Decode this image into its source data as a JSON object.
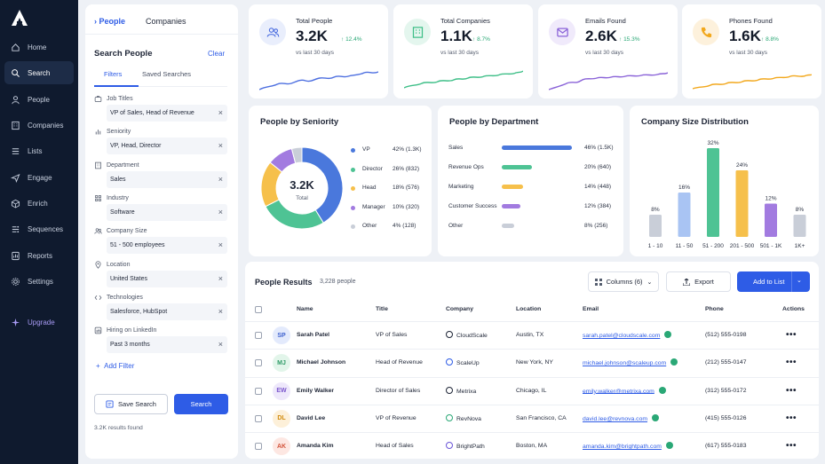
{
  "sidebar": {
    "items": [
      {
        "label": "Home",
        "icon": "home-icon"
      },
      {
        "label": "Search",
        "icon": "search-icon",
        "active": true
      },
      {
        "label": "People",
        "icon": "user-icon"
      },
      {
        "label": "Companies",
        "icon": "building-icon"
      },
      {
        "label": "Lists",
        "icon": "list-icon"
      },
      {
        "label": "Engage",
        "icon": "send-icon"
      },
      {
        "label": "Enrich",
        "icon": "cube-icon"
      },
      {
        "label": "Sequences",
        "icon": "sequence-icon"
      },
      {
        "label": "Reports",
        "icon": "report-icon"
      },
      {
        "label": "Settings",
        "icon": "gear-icon"
      }
    ],
    "upgrade": "Upgrade"
  },
  "search_panel": {
    "tab_people": "People",
    "tab_companies": "Companies",
    "title": "Search People",
    "clear": "Clear",
    "subtab_filters": "Filters",
    "subtab_saved": "Saved Searches",
    "filters": [
      {
        "label": "Job Titles",
        "value": "VP of Sales, Head of Revenue"
      },
      {
        "label": "Seniority",
        "value": "VP, Head, Director"
      },
      {
        "label": "Department",
        "value": "Sales"
      },
      {
        "label": "Industry",
        "value": "Software"
      },
      {
        "label": "Company Size",
        "value": "51 - 500 employees"
      },
      {
        "label": "Location",
        "value": "United States"
      },
      {
        "label": "Technologies",
        "value": "Salesforce, HubSpot"
      },
      {
        "label": "Hiring on LinkedIn",
        "value": "Past 3 months"
      }
    ],
    "add_filter": "Add Filter",
    "save_search": "Save Search",
    "search": "Search",
    "results_found": "3.2K results found"
  },
  "stats": [
    {
      "label": "Total People",
      "value": "3.2K",
      "delta": "12.4%",
      "sub": "vs last 30 days",
      "color": "#4d6fe0",
      "bg": "#e9eefc",
      "icon": "users-icon"
    },
    {
      "label": "Total Companies",
      "value": "1.1K",
      "delta": "8.7%",
      "sub": "vs last 30 days",
      "color": "#3fbf88",
      "bg": "#e4f6ee",
      "icon": "building-icon"
    },
    {
      "label": "Emails Found",
      "value": "2.6K",
      "delta": "15.3%",
      "sub": "vs last 30 days",
      "color": "#8a63d8",
      "bg": "#f0eafb",
      "icon": "mail-icon"
    },
    {
      "label": "Phones Found",
      "value": "1.6K",
      "delta": "8.8%",
      "sub": "vs last 30 days",
      "color": "#f2a81d",
      "bg": "#fdf1dc",
      "icon": "phone-icon"
    }
  ],
  "seniority": {
    "title": "People by Seniority",
    "center_value": "3.2K",
    "center_label": "Total"
  },
  "department": {
    "title": "People by Department"
  },
  "company_size": {
    "title": "Company Size Distribution"
  },
  "results": {
    "title": "People Results",
    "count": "3,228 people",
    "columns_btn": "Columns (6)",
    "export_btn": "Export",
    "add_btn": "Add to List",
    "headers": [
      "Name",
      "Title",
      "Company",
      "Location",
      "Email",
      "Phone",
      "Actions"
    ],
    "rows": [
      {
        "initials": "SP",
        "name": "Sarah Patel",
        "title": "VP of Sales",
        "company": "CloudScale",
        "location": "Austin, TX",
        "email": "sarah.patel@cloudscale.com",
        "phone": "(512) 555-0198",
        "avatar_bg": "#e3eafc",
        "avatar_fg": "#3f62cf"
      },
      {
        "initials": "MJ",
        "name": "Michael Johnson",
        "title": "Head of Revenue",
        "company": "ScaleUp",
        "location": "New York, NY",
        "email": "michael.johnson@scaleup.com",
        "phone": "(212) 555-0147",
        "avatar_bg": "#e2f5ea",
        "avatar_fg": "#2e9a66"
      },
      {
        "initials": "EW",
        "name": "Emily Walker",
        "title": "Director of Sales",
        "company": "Metrixa",
        "location": "Chicago, IL",
        "email": "emily.walker@metrixa.com",
        "phone": "(312) 555-0172",
        "avatar_bg": "#eee8fb",
        "avatar_fg": "#7a55cc"
      },
      {
        "initials": "DL",
        "name": "David Lee",
        "title": "VP of Revenue",
        "company": "RevNova",
        "location": "San Francisco, CA",
        "email": "david.lee@revnova.com",
        "phone": "(415) 555-0126",
        "avatar_bg": "#fdf0d9",
        "avatar_fg": "#d18b0c"
      },
      {
        "initials": "AK",
        "name": "Amanda Kim",
        "title": "Head of Sales",
        "company": "BrightPath",
        "location": "Boston, MA",
        "email": "amanda.kim@brightpath.com",
        "phone": "(617) 555-0183",
        "avatar_bg": "#fde7e2",
        "avatar_fg": "#d3553c"
      }
    ]
  },
  "chart_data": [
    {
      "type": "pie",
      "title": "People by Seniority",
      "categories": [
        "VP",
        "Director",
        "Head",
        "Manager",
        "Other"
      ],
      "values": [
        1300,
        832,
        576,
        320,
        128
      ],
      "percent_labels": [
        "42% (1.3K)",
        "26% (832)",
        "18% (576)",
        "10% (320)",
        "4% (128)"
      ],
      "colors": [
        "#4a78dc",
        "#4ec394",
        "#f6c04b",
        "#a27be0",
        "#c9ced8"
      ]
    },
    {
      "type": "bar",
      "title": "People by Department",
      "categories": [
        "Sales",
        "Revenue Ops",
        "Marketing",
        "Customer Success",
        "Other"
      ],
      "values": [
        46,
        20,
        14,
        12,
        8
      ],
      "value_labels": [
        "46% (1.5K)",
        "20% (640)",
        "14% (448)",
        "12% (384)",
        "8% (256)"
      ],
      "colors": [
        "#4a78dc",
        "#4ec394",
        "#f6c04b",
        "#a27be0",
        "#c9ced8"
      ]
    },
    {
      "type": "bar",
      "title": "Company Size Distribution",
      "categories": [
        "1 - 10",
        "11 - 50",
        "51 - 200",
        "201 - 500",
        "501 - 1K",
        "1K+"
      ],
      "values": [
        8,
        16,
        32,
        24,
        12,
        8
      ],
      "value_labels": [
        "8%",
        "16%",
        "32%",
        "24%",
        "12%",
        "8%"
      ],
      "ylim": [
        0,
        32
      ],
      "colors": [
        "#c9ced8",
        "#a9c4f3",
        "#4ec394",
        "#f6c04b",
        "#a27be0",
        "#c9ced8"
      ]
    }
  ]
}
